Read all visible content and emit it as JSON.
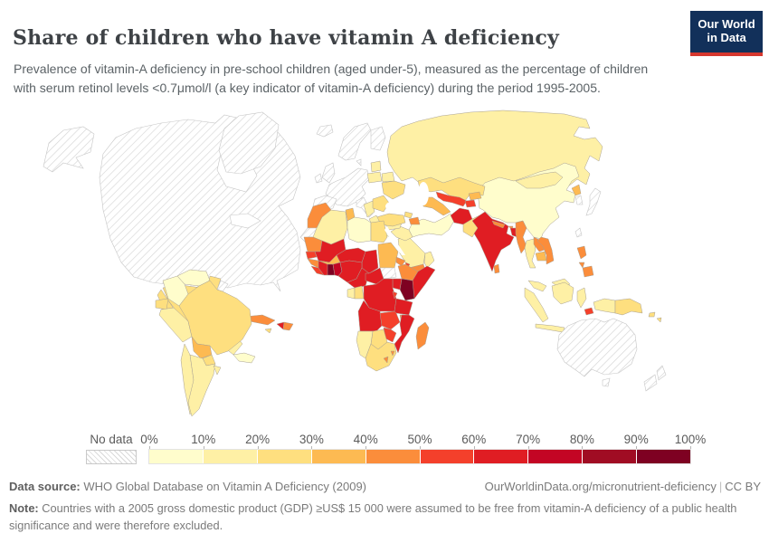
{
  "header": {
    "title": "Share of children who have vitamin A deficiency",
    "subtitle": "Prevalence of vitamin-A deficiency in pre-school children (aged under-5), measured as the percentage of children with serum retinol levels <0.7μmol/l (a key indicator of vitamin-A deficiency) during the period 1995-2005.",
    "logo": {
      "line1": "Our World",
      "line2": "in Data",
      "bg_color": "#12305a",
      "accent_color": "#d6372e"
    }
  },
  "legend": {
    "no_data_label": "No data",
    "ticks": [
      "0%",
      "10%",
      "20%",
      "30%",
      "40%",
      "50%",
      "60%",
      "70%",
      "80%",
      "90%",
      "100%"
    ]
  },
  "footer": {
    "datasource_label": "Data source:",
    "datasource_value": "WHO Global Database on Vitamin A Deficiency (2009)",
    "link": "OurWorldinData.org/micronutrient-deficiency",
    "separator": "|",
    "license": "CC BY",
    "note_label": "Note:",
    "note_value": "Countries with a 2005 gross domestic product (GDP) ≥US$ 15 000 were assumed to be free from vitamin-A deficiency of a public health significance and were therefore excluded."
  },
  "chart_data": {
    "type": "choropleth_map",
    "title": "Share of children who have vitamin A deficiency",
    "unit": "% of pre-school children with serum retinol <0.7 μmol/l",
    "period": "1995-2005",
    "ranges": [
      "0-10%",
      "10-20%",
      "20-30%",
      "30-40%",
      "40-50%",
      "50-60%",
      "60-70%",
      "70-80%",
      "80-90%",
      "90-100%"
    ],
    "bin_colors": [
      "#FFFDCC",
      "#FEF0A5",
      "#FEDF7F",
      "#FDBA52",
      "#FB8D3B",
      "#F4402B",
      "#E01D23",
      "#C30524",
      "#A00C23",
      "#7E0122"
    ],
    "no_data_fill": "hatch",
    "countries": [
      {
        "id": "canada_usa",
        "name": "Canada & United States",
        "value": "no data",
        "bin": -1
      },
      {
        "id": "alaska",
        "name": "Alaska (United States)",
        "value": "no data",
        "bin": -1
      },
      {
        "id": "greenland",
        "name": "Greenland",
        "value": "no data",
        "bin": -1
      },
      {
        "id": "iceland",
        "name": "Iceland",
        "value": "no data",
        "bin": -1
      },
      {
        "id": "uk",
        "name": "United Kingdom",
        "value": "no data",
        "bin": -1
      },
      {
        "id": "ireland",
        "name": "Ireland",
        "value": "no data",
        "bin": -1
      },
      {
        "id": "norway_sweden",
        "name": "Norway & Sweden",
        "value": "no data",
        "bin": -1
      },
      {
        "id": "finland",
        "name": "Finland",
        "value": "no data",
        "bin": -1
      },
      {
        "id": "denmark",
        "name": "Denmark",
        "value": "no data",
        "bin": -1
      },
      {
        "id": "western_europe",
        "name": "France, Germany & Central Europe",
        "value": "no data",
        "bin": -1
      },
      {
        "id": "iberia",
        "name": "Spain & Portugal",
        "value": "no data",
        "bin": -1
      },
      {
        "id": "italy",
        "name": "Italy",
        "value": "no data",
        "bin": -1
      },
      {
        "id": "western_sahara",
        "name": "Western Sahara",
        "value": "no data",
        "bin": -1
      },
      {
        "id": "south_sudan",
        "name": "South Sudan",
        "value": "no data",
        "bin": -1
      },
      {
        "id": "french_guiana",
        "name": "French Guiana",
        "value": "no data",
        "bin": -1
      },
      {
        "id": "japan",
        "name": "Japan",
        "value": "no data",
        "bin": -1
      },
      {
        "id": "south_korea",
        "name": "South Korea",
        "value": "no data",
        "bin": -1
      },
      {
        "id": "taiwan",
        "name": "Taiwan",
        "value": "no data",
        "bin": -1
      },
      {
        "id": "australia",
        "name": "Australia",
        "value": "no data",
        "bin": -1
      },
      {
        "id": "new_zealand",
        "name": "New Zealand",
        "value": "no data",
        "bin": -1
      },
      {
        "id": "mexico",
        "name": "Mexico",
        "value": "20-30%",
        "bin": 2
      },
      {
        "id": "guatemala",
        "name": "Guatemala",
        "value": "20-30%",
        "bin": 2
      },
      {
        "id": "honduras_nicaragua",
        "name": "Honduras & Nicaragua",
        "value": "10-20%",
        "bin": 1
      },
      {
        "id": "costa_rica_panama",
        "name": "Costa Rica & Panama",
        "value": "0-10%",
        "bin": 0
      },
      {
        "id": "cuba",
        "name": "Cuba",
        "value": "40-50%",
        "bin": 4
      },
      {
        "id": "haiti",
        "name": "Haiti",
        "value": "60-70%",
        "bin": 6
      },
      {
        "id": "dominican_republic",
        "name": "Dominican Republic",
        "value": "40-50%",
        "bin": 4
      },
      {
        "id": "jamaica",
        "name": "Jamaica",
        "value": "20-30%",
        "bin": 2
      },
      {
        "id": "venezuela",
        "name": "Venezuela",
        "value": "0-10%",
        "bin": 0
      },
      {
        "id": "colombia",
        "name": "Colombia",
        "value": "0-10%",
        "bin": 0
      },
      {
        "id": "guyana_suriname",
        "name": "Guyana & Suriname",
        "value": "20-30%",
        "bin": 2
      },
      {
        "id": "ecuador",
        "name": "Ecuador",
        "value": "20-30%",
        "bin": 2
      },
      {
        "id": "peru",
        "name": "Peru",
        "value": "10-20%",
        "bin": 1
      },
      {
        "id": "brazil",
        "name": "Brazil",
        "value": "20-30%",
        "bin": 2
      },
      {
        "id": "bolivia",
        "name": "Bolivia",
        "value": "30-40%",
        "bin": 3
      },
      {
        "id": "paraguay",
        "name": "Paraguay",
        "value": "20-30%",
        "bin": 2
      },
      {
        "id": "chile",
        "name": "Chile",
        "value": "10-20%",
        "bin": 1
      },
      {
        "id": "argentina",
        "name": "Argentina",
        "value": "10-20%",
        "bin": 1
      },
      {
        "id": "uruguay",
        "name": "Uruguay",
        "value": "10-20%",
        "bin": 1
      },
      {
        "id": "morocco",
        "name": "Morocco",
        "value": "40-50%",
        "bin": 4
      },
      {
        "id": "algeria",
        "name": "Algeria",
        "value": "10-20%",
        "bin": 1
      },
      {
        "id": "tunisia",
        "name": "Tunisia",
        "value": "30-40%",
        "bin": 3
      },
      {
        "id": "libya",
        "name": "Libya",
        "value": "0-10%",
        "bin": 0
      },
      {
        "id": "egypt",
        "name": "Egypt",
        "value": "20-30%",
        "bin": 2
      },
      {
        "id": "mauritania",
        "name": "Mauritania",
        "value": "40-50%",
        "bin": 4
      },
      {
        "id": "mali",
        "name": "Mali",
        "value": "60-70%",
        "bin": 6
      },
      {
        "id": "niger",
        "name": "Niger",
        "value": "60-70%",
        "bin": 6
      },
      {
        "id": "chad",
        "name": "Chad",
        "value": "60-70%",
        "bin": 6
      },
      {
        "id": "sudan",
        "name": "Sudan",
        "value": "30-40%",
        "bin": 3
      },
      {
        "id": "eritrea",
        "name": "Eritrea",
        "value": "40-50%",
        "bin": 4
      },
      {
        "id": "ethiopia",
        "name": "Ethiopia",
        "value": "40-50%",
        "bin": 4
      },
      {
        "id": "djibouti",
        "name": "Djibouti",
        "value": "50-60%",
        "bin": 5
      },
      {
        "id": "somalia",
        "name": "Somalia",
        "value": "60-70%",
        "bin": 6
      },
      {
        "id": "kenya",
        "name": "Kenya",
        "value": "90-100%",
        "bin": 9
      },
      {
        "id": "uganda",
        "name": "Uganda",
        "value": "60-70%",
        "bin": 6
      },
      {
        "id": "senegal",
        "name": "Senegal",
        "value": "50-60%",
        "bin": 5
      },
      {
        "id": "guinea",
        "name": "Guinea",
        "value": "40-50%",
        "bin": 4
      },
      {
        "id": "sierra_leone_liberia",
        "name": "Sierra Leone & Liberia",
        "value": "50-60%",
        "bin": 5
      },
      {
        "id": "cote_divoire",
        "name": "Cote d'Ivoire",
        "value": "60-70%",
        "bin": 6
      },
      {
        "id": "ghana",
        "name": "Ghana",
        "value": "90-100%",
        "bin": 9
      },
      {
        "id": "togo_benin",
        "name": "Togo & Benin",
        "value": "70-80%",
        "bin": 7
      },
      {
        "id": "burkina_faso",
        "name": "Burkina Faso",
        "value": "30-40%",
        "bin": 3
      },
      {
        "id": "nigeria",
        "name": "Nigeria",
        "value": "60-70%",
        "bin": 6
      },
      {
        "id": "cameroon",
        "name": "Cameroon",
        "value": "60-70%",
        "bin": 6
      },
      {
        "id": "central_african_republic",
        "name": "Central African Republic",
        "value": "60-70%",
        "bin": 6
      },
      {
        "id": "gabon",
        "name": "Gabon",
        "value": "10-20%",
        "bin": 1
      },
      {
        "id": "congo",
        "name": "Congo",
        "value": "20-30%",
        "bin": 2
      },
      {
        "id": "dr_congo",
        "name": "Democratic Republic of Congo",
        "value": "60-70%",
        "bin": 6
      },
      {
        "id": "rwanda_burundi",
        "name": "Rwanda & Burundi",
        "value": "50-60%",
        "bin": 5
      },
      {
        "id": "tanzania",
        "name": "Tanzania",
        "value": "60-70%",
        "bin": 6
      },
      {
        "id": "angola",
        "name": "Angola",
        "value": "60-70%",
        "bin": 6
      },
      {
        "id": "zambia",
        "name": "Zambia",
        "value": "50-60%",
        "bin": 5
      },
      {
        "id": "malawi",
        "name": "Malawi",
        "value": "40-50%",
        "bin": 4
      },
      {
        "id": "mozambique",
        "name": "Mozambique",
        "value": "60-70%",
        "bin": 6
      },
      {
        "id": "zimbabwe",
        "name": "Zimbabwe",
        "value": "50-60%",
        "bin": 5
      },
      {
        "id": "botswana",
        "name": "Botswana",
        "value": "20-30%",
        "bin": 2
      },
      {
        "id": "namibia",
        "name": "Namibia",
        "value": "10-20%",
        "bin": 1
      },
      {
        "id": "south_africa",
        "name": "South Africa",
        "value": "20-30%",
        "bin": 2
      },
      {
        "id": "lesotho",
        "name": "Lesotho",
        "value": "40-50%",
        "bin": 4
      },
      {
        "id": "swaziland",
        "name": "Eswatini",
        "value": "40-50%",
        "bin": 4
      },
      {
        "id": "madagascar",
        "name": "Madagascar",
        "value": "40-50%",
        "bin": 4
      },
      {
        "id": "poland",
        "name": "Poland",
        "value": "10-20%",
        "bin": 1
      },
      {
        "id": "baltics",
        "name": "Baltic states",
        "value": "10-20%",
        "bin": 1
      },
      {
        "id": "belarus",
        "name": "Belarus",
        "value": "10-20%",
        "bin": 1
      },
      {
        "id": "ukraine",
        "name": "Ukraine",
        "value": "20-30%",
        "bin": 2
      },
      {
        "id": "romania_bulgaria",
        "name": "Romania & Bulgaria",
        "value": "20-30%",
        "bin": 2
      },
      {
        "id": "balkans",
        "name": "Balkans",
        "value": "10-20%",
        "bin": 1
      },
      {
        "id": "greece",
        "name": "Greece",
        "value": "10-20%",
        "bin": 1
      },
      {
        "id": "turkey",
        "name": "Turkey",
        "value": "20-30%",
        "bin": 2
      },
      {
        "id": "georgia",
        "name": "Georgia",
        "value": "20-30%",
        "bin": 2
      },
      {
        "id": "armenia_azerbaijan",
        "name": "Armenia & Azerbaijan",
        "value": "40-50%",
        "bin": 4
      },
      {
        "id": "syria",
        "name": "Syria",
        "value": "10-20%",
        "bin": 1
      },
      {
        "id": "iraq",
        "name": "Iraq",
        "value": "10-20%",
        "bin": 1
      },
      {
        "id": "jordan",
        "name": "Jordan",
        "value": "0-10%",
        "bin": 0
      },
      {
        "id": "saudi_arabia",
        "name": "Saudi Arabia",
        "value": "10-20%",
        "bin": 1
      },
      {
        "id": "yemen",
        "name": "Yemen",
        "value": "40-50%",
        "bin": 4
      },
      {
        "id": "oman",
        "name": "Oman",
        "value": "10-20%",
        "bin": 1
      },
      {
        "id": "iran",
        "name": "Iran",
        "value": "0-10%",
        "bin": 0
      },
      {
        "id": "russia",
        "name": "Russia",
        "value": "10-20%",
        "bin": 1
      },
      {
        "id": "kazakhstan",
        "name": "Kazakhstan",
        "value": "20-30%",
        "bin": 2
      },
      {
        "id": "uzbekistan",
        "name": "Uzbekistan",
        "value": "50-60%",
        "bin": 5
      },
      {
        "id": "turkmenistan",
        "name": "Turkmenistan",
        "value": "30-40%",
        "bin": 3
      },
      {
        "id": "kyrgyzstan",
        "name": "Kyrgyzstan",
        "value": "30-40%",
        "bin": 3
      },
      {
        "id": "tajikistan",
        "name": "Tajikistan",
        "value": "50-60%",
        "bin": 5
      },
      {
        "id": "afghanistan",
        "name": "Afghanistan",
        "value": "60-70%",
        "bin": 6
      },
      {
        "id": "pakistan",
        "name": "Pakistan",
        "value": "20-30%",
        "bin": 2
      },
      {
        "id": "india",
        "name": "India",
        "value": "60-70%",
        "bin": 6
      },
      {
        "id": "nepal",
        "name": "Nepal",
        "value": "40-50%",
        "bin": 4
      },
      {
        "id": "bhutan",
        "name": "Bhutan",
        "value": "40-50%",
        "bin": 4
      },
      {
        "id": "bangladesh",
        "name": "Bangladesh",
        "value": "60-70%",
        "bin": 6
      },
      {
        "id": "sri_lanka",
        "name": "Sri Lanka",
        "value": "40-50%",
        "bin": 4
      },
      {
        "id": "myanmar",
        "name": "Myanmar",
        "value": "40-50%",
        "bin": 4
      },
      {
        "id": "thailand",
        "name": "Thailand",
        "value": "10-20%",
        "bin": 1
      },
      {
        "id": "laos",
        "name": "Laos",
        "value": "40-50%",
        "bin": 4
      },
      {
        "id": "cambodia",
        "name": "Cambodia",
        "value": "30-40%",
        "bin": 3
      },
      {
        "id": "vietnam",
        "name": "Vietnam",
        "value": "40-50%",
        "bin": 4
      },
      {
        "id": "china",
        "name": "China",
        "value": "0-10%",
        "bin": 0
      },
      {
        "id": "mongolia",
        "name": "Mongolia",
        "value": "10-20%",
        "bin": 1
      },
      {
        "id": "north_korea",
        "name": "North Korea",
        "value": "30-40%",
        "bin": 3
      },
      {
        "id": "malaysia",
        "name": "Malaysia",
        "value": "10-20%",
        "bin": 1
      },
      {
        "id": "indonesia",
        "name": "Indonesia",
        "value": "10-20%",
        "bin": 1
      },
      {
        "id": "papua_new_guinea",
        "name": "Papua New Guinea",
        "value": "20-30%",
        "bin": 2
      },
      {
        "id": "timor_leste",
        "name": "Timor-Leste",
        "value": "50-60%",
        "bin": 5
      },
      {
        "id": "philippines",
        "name": "Philippines",
        "value": "40-50%",
        "bin": 4
      },
      {
        "id": "solomon_islands",
        "name": "Solomon Islands",
        "value": "20-30%",
        "bin": 2
      }
    ]
  }
}
